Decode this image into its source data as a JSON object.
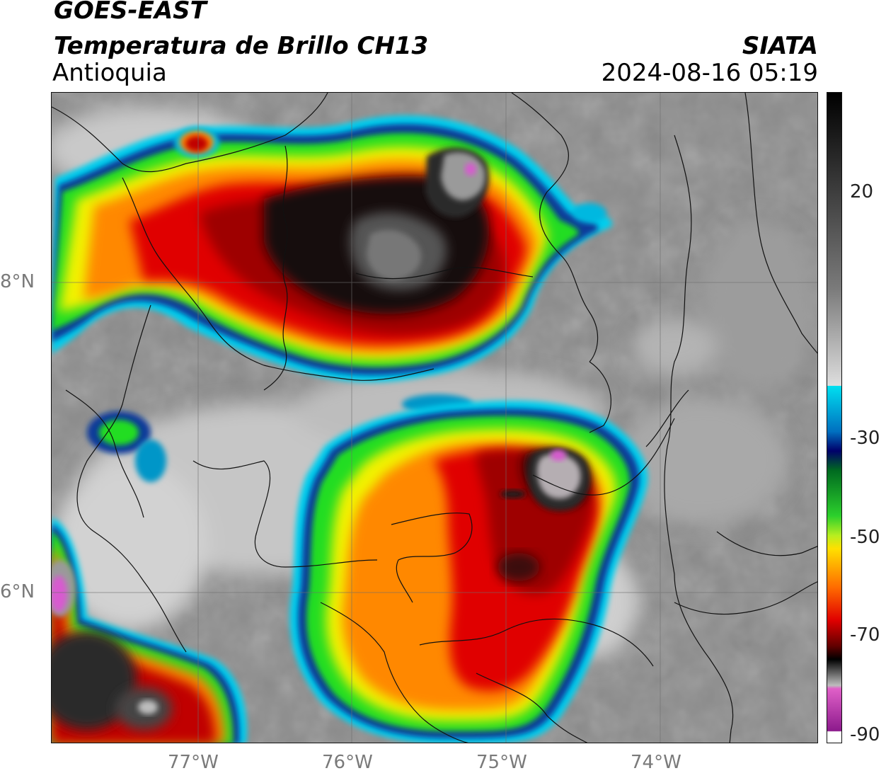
{
  "header": {
    "satellite": "GOES-EAST",
    "product": "Temperatura de Brillo CH13",
    "region": "Antioquia",
    "agency": "SIATA",
    "datetime": "2024-08-16 05:19"
  },
  "axes": {
    "lat_labels": [
      {
        "text": "8°N",
        "value": 8
      },
      {
        "text": "6°N",
        "value": 6
      }
    ],
    "lon_labels": [
      {
        "text": "77°W",
        "value": -77
      },
      {
        "text": "76°W",
        "value": -76
      },
      {
        "text": "75°W",
        "value": -75
      },
      {
        "text": "74°W",
        "value": -74
      }
    ],
    "lon_range": [
      -77.95,
      -72.98
    ],
    "lat_range": [
      5.05,
      9.25
    ]
  },
  "colorbar": {
    "ticks": [
      {
        "text": "20",
        "value": 20
      },
      {
        "text": "-30",
        "value": -30
      },
      {
        "text": "-50",
        "value": -50
      },
      {
        "text": "-70",
        "value": -70
      },
      {
        "text": "-90",
        "value": -90
      }
    ],
    "range": [
      -92,
      34
    ]
  },
  "colors": {
    "background_gray": "#8b8b8b",
    "cold_cloud_black": "#111111",
    "deep_red": "#9e0000",
    "red": "#e00000",
    "orange": "#ff8800",
    "yellow": "#f2f200",
    "green": "#22dd22",
    "blue": "#003ca8",
    "cyan": "#00cfee",
    "magenta": "#d040c8"
  }
}
